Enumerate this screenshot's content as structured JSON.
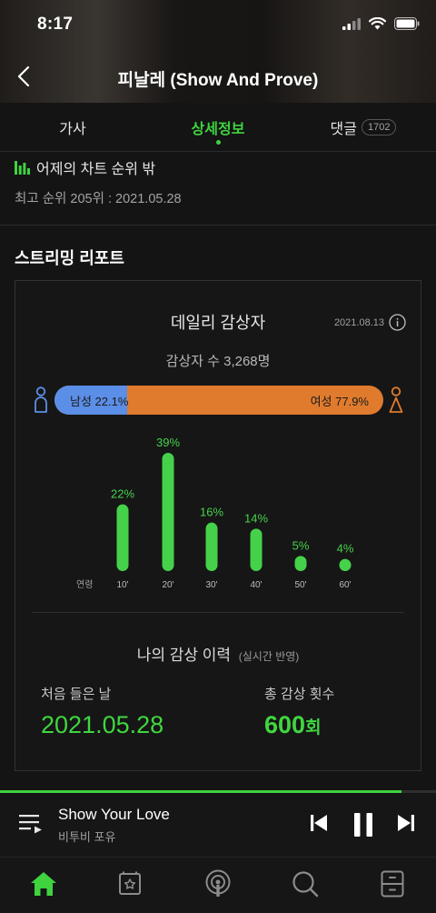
{
  "status_bar": {
    "time": "8:17"
  },
  "header": {
    "song_title": "피날레 (Show And Prove)"
  },
  "tabs": {
    "lyrics": "가사",
    "details": "상세정보",
    "comments": "댓글",
    "comments_count": "1702"
  },
  "chart_rank": {
    "yesterday_label": "어제의 차트 순위 밖",
    "best_rank": "최고 순위 205위 : 2021.05.28"
  },
  "streaming_report": {
    "section_title": "스트리밍 리포트",
    "daily_listeners_title": "데일리 감상자",
    "date": "2021.08.13",
    "listener_count": "감상자 수 3,268명",
    "gender": {
      "male_label": "남성 22.1%",
      "female_label": "여성 77.9%",
      "male_share": 22.1,
      "female_share": 77.9,
      "male_color": "#5b8ee6",
      "female_color": "#e07b2e"
    },
    "age_axis_label": "연령"
  },
  "chart_data": {
    "type": "bar",
    "categories": [
      "10'",
      "20'",
      "30'",
      "40'",
      "50'",
      "60'"
    ],
    "values": [
      22,
      39,
      16,
      14,
      5,
      4
    ],
    "value_labels": [
      "22%",
      "39%",
      "16%",
      "14%",
      "5%",
      "4%"
    ],
    "xlabel": "연령",
    "ylabel": "",
    "color": "#45d14a"
  },
  "listening_history": {
    "title": "나의 감상 이력",
    "title_note": "(실시간 반영)",
    "first_listen_label": "처음 들은 날",
    "first_listen_value": "2021.05.28",
    "total_plays_label": "총 감상 횟수",
    "total_plays_value": "600",
    "total_plays_unit": "회"
  },
  "player": {
    "track_title": "Show Your Love",
    "artist": "비투비 포유",
    "progress": 0.92,
    "accent": "#3fd33f"
  },
  "bottom_nav": {
    "items": [
      "home-icon",
      "library-icon",
      "podcast-icon",
      "search-icon",
      "storage-icon"
    ]
  }
}
